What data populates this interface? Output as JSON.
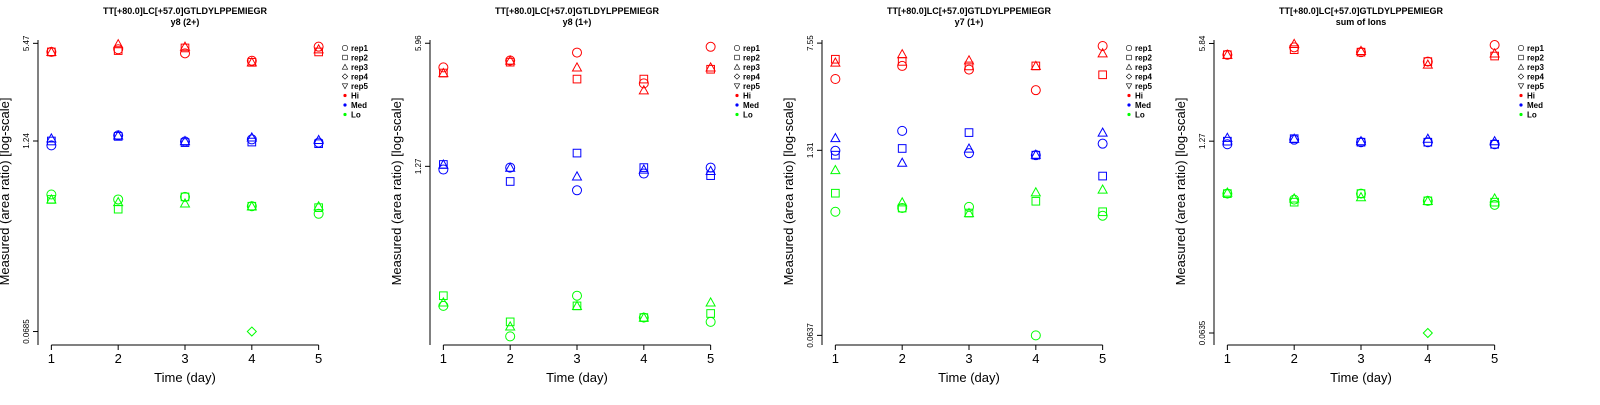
{
  "legend": {
    "entries": [
      "rep1",
      "rep2",
      "rep3",
      "rep4",
      "rep5",
      "Hi",
      "Med",
      "Lo"
    ]
  },
  "colors": {
    "Hi": "#ff0000",
    "Med": "#0000ff",
    "Lo": "#00ff00"
  },
  "chart_data": [
    {
      "type": "scatter",
      "title": "TT[+80.0]LC[+57.0]GTLDYLPPEMIEGR",
      "subtitle": "y8 (2+)",
      "xlabel": "Time (day)",
      "ylabel": "Measured (area ratio) [log-scale]",
      "xticks": [
        "1",
        "2",
        "3",
        "4",
        "5"
      ],
      "yticks": [
        "0.0685",
        "1.24",
        "5.47"
      ],
      "ylim_log10": [
        -1.24,
        0.76
      ],
      "log_scale": true,
      "series": [
        {
          "level": "Hi",
          "rep": "rep1",
          "x": [
            1,
            2,
            3,
            4,
            5
          ],
          "y": [
            4.8,
            5.0,
            4.7,
            4.2,
            5.2
          ]
        },
        {
          "level": "Hi",
          "rep": "rep2",
          "x": [
            1,
            2,
            3,
            4,
            5
          ],
          "y": [
            4.8,
            4.9,
            5.1,
            4.1,
            4.8
          ]
        },
        {
          "level": "Hi",
          "rep": "rep3",
          "x": [
            1,
            2,
            3,
            4,
            5
          ],
          "y": [
            4.8,
            5.4,
            5.2,
            4.1,
            5.0
          ]
        },
        {
          "level": "Med",
          "rep": "rep1",
          "x": [
            1,
            2,
            3,
            4,
            5
          ],
          "y": [
            1.16,
            1.35,
            1.23,
            1.27,
            1.21
          ]
        },
        {
          "level": "Med",
          "rep": "rep2",
          "x": [
            1,
            2,
            3,
            4,
            5
          ],
          "y": [
            1.24,
            1.33,
            1.21,
            1.22,
            1.19
          ]
        },
        {
          "level": "Med",
          "rep": "rep3",
          "x": [
            1,
            2,
            3,
            4,
            5
          ],
          "y": [
            1.29,
            1.35,
            1.24,
            1.31,
            1.26
          ]
        },
        {
          "level": "Lo",
          "rep": "rep1",
          "x": [
            1,
            2,
            3,
            4,
            5
          ],
          "y": [
            0.55,
            0.51,
            0.53,
            0.46,
            0.41
          ]
        },
        {
          "level": "Lo",
          "rep": "rep2",
          "x": [
            1,
            2,
            3,
            4,
            5
          ],
          "y": [
            0.51,
            0.44,
            0.53,
            0.46,
            0.45
          ]
        },
        {
          "level": "Lo",
          "rep": "rep3",
          "x": [
            1,
            2,
            3,
            4,
            5
          ],
          "y": [
            0.51,
            0.49,
            0.48,
            0.46,
            0.46
          ]
        },
        {
          "level": "Lo",
          "rep": "rep4",
          "x": [
            4
          ],
          "y": [
            0.0685
          ]
        }
      ]
    },
    {
      "type": "scatter",
      "title": "TT[+80.0]LC[+57.0]GTLDYLPPEMIEGR",
      "subtitle": "y8 (1+)",
      "xlabel": "Time (day)",
      "ylabel": "Measured (area ratio) [log-scale]",
      "xticks": [
        "1",
        "2",
        "3",
        "4",
        "5"
      ],
      "yticks": [
        "1.27",
        "5.96"
      ],
      "ylim_log10": [
        -0.86,
        0.793
      ],
      "log_scale": true,
      "series": [
        {
          "level": "Hi",
          "rep": "rep1",
          "x": [
            1,
            2,
            3,
            4,
            5
          ],
          "y": [
            4.4,
            4.8,
            5.3,
            3.6,
            5.7
          ]
        },
        {
          "level": "Hi",
          "rep": "rep2",
          "x": [
            1,
            2,
            3,
            4,
            5
          ],
          "y": [
            4.1,
            4.7,
            3.8,
            3.8,
            4.3
          ]
        },
        {
          "level": "Hi",
          "rep": "rep3",
          "x": [
            1,
            2,
            3,
            4,
            5
          ],
          "y": [
            4.1,
            4.8,
            4.4,
            3.3,
            4.4
          ]
        },
        {
          "level": "Med",
          "rep": "rep1",
          "x": [
            1,
            2,
            3,
            4,
            5
          ],
          "y": [
            1.22,
            1.25,
            0.94,
            1.16,
            1.25
          ]
        },
        {
          "level": "Med",
          "rep": "rep2",
          "x": [
            1,
            2,
            3,
            4,
            5
          ],
          "y": [
            1.3,
            1.05,
            1.5,
            1.25,
            1.13
          ]
        },
        {
          "level": "Med",
          "rep": "rep3",
          "x": [
            1,
            2,
            3,
            4,
            5
          ],
          "y": [
            1.3,
            1.25,
            1.12,
            1.22,
            1.2
          ]
        },
        {
          "level": "Lo",
          "rep": "rep1",
          "x": [
            1,
            2,
            3,
            4,
            5
          ],
          "y": [
            0.22,
            0.15,
            0.25,
            0.19,
            0.18
          ]
        },
        {
          "level": "Lo",
          "rep": "rep2",
          "x": [
            1,
            2,
            3,
            4,
            5
          ],
          "y": [
            0.25,
            0.18,
            0.22,
            0.19,
            0.2
          ]
        },
        {
          "level": "Lo",
          "rep": "rep3",
          "x": [
            1,
            2,
            3,
            4,
            5
          ],
          "y": [
            0.23,
            0.17,
            0.22,
            0.19,
            0.23
          ]
        }
      ]
    },
    {
      "type": "scatter",
      "title": "TT[+80.0]LC[+57.0]GTLDYLPPEMIEGR",
      "subtitle": "y7 (1+)",
      "xlabel": "Time (day)",
      "ylabel": "Measured (area ratio) [log-scale]",
      "xticks": [
        "1",
        "2",
        "3",
        "4",
        "5"
      ],
      "yticks": [
        "0.0637",
        "1.31",
        "7.55"
      ],
      "ylim_log10": [
        -1.25,
        0.9
      ],
      "log_scale": true,
      "series": [
        {
          "level": "Hi",
          "rep": "rep1",
          "x": [
            1,
            2,
            3,
            4,
            5
          ],
          "y": [
            4.2,
            5.2,
            4.9,
            3.5,
            7.2
          ]
        },
        {
          "level": "Hi",
          "rep": "rep2",
          "x": [
            1,
            2,
            3,
            4,
            5
          ],
          "y": [
            5.8,
            5.6,
            5.2,
            5.2,
            4.5
          ]
        },
        {
          "level": "Hi",
          "rep": "rep3",
          "x": [
            1,
            2,
            3,
            4,
            5
          ],
          "y": [
            5.5,
            6.3,
            5.7,
            5.2,
            6.4
          ]
        },
        {
          "level": "Med",
          "rep": "rep1",
          "x": [
            1,
            2,
            3,
            4,
            5
          ],
          "y": [
            1.3,
            1.8,
            1.25,
            1.21,
            1.46
          ]
        },
        {
          "level": "Med",
          "rep": "rep2",
          "x": [
            1,
            2,
            3,
            4,
            5
          ],
          "y": [
            1.21,
            1.35,
            1.75,
            1.21,
            0.86
          ]
        },
        {
          "level": "Med",
          "rep": "rep3",
          "x": [
            1,
            2,
            3,
            4,
            5
          ],
          "y": [
            1.6,
            1.07,
            1.35,
            1.22,
            1.75
          ]
        },
        {
          "level": "Lo",
          "rep": "rep1",
          "x": [
            1,
            2,
            3,
            4,
            5
          ],
          "y": [
            0.48,
            0.51,
            0.52,
            0.0637,
            0.45
          ]
        },
        {
          "level": "Lo",
          "rep": "rep2",
          "x": [
            1,
            2,
            3,
            4,
            5
          ],
          "y": [
            0.65,
            0.51,
            0.47,
            0.57,
            0.48
          ]
        },
        {
          "level": "Lo",
          "rep": "rep3",
          "x": [
            1,
            2,
            3,
            4,
            5
          ],
          "y": [
            0.95,
            0.56,
            0.47,
            0.66,
            0.69
          ]
        }
      ]
    },
    {
      "type": "scatter",
      "title": "TT[+80.0]LC[+57.0]GTLDYLPPEMIEGR",
      "subtitle": "sum of Ions",
      "xlabel": "Time (day)",
      "ylabel": "Measured (area ratio) [log-scale]",
      "xticks": [
        "1",
        "2",
        "3",
        "4",
        "5"
      ],
      "yticks": [
        "0.0635",
        "1.27",
        "5.84"
      ],
      "ylim_log10": [
        -1.265,
        0.79
      ],
      "log_scale": true,
      "series": [
        {
          "level": "Hi",
          "rep": "rep1",
          "x": [
            1,
            2,
            3,
            4,
            5
          ],
          "y": [
            4.9,
            5.5,
            5.1,
            4.4,
            5.7
          ]
        },
        {
          "level": "Hi",
          "rep": "rep2",
          "x": [
            1,
            2,
            3,
            4,
            5
          ],
          "y": [
            4.9,
            5.3,
            5.1,
            4.4,
            4.8
          ]
        },
        {
          "level": "Hi",
          "rep": "rep3",
          "x": [
            1,
            2,
            3,
            4,
            5
          ],
          "y": [
            4.9,
            5.8,
            5.2,
            4.2,
            5.0
          ]
        },
        {
          "level": "Med",
          "rep": "rep1",
          "x": [
            1,
            2,
            3,
            4,
            5
          ],
          "y": [
            1.21,
            1.3,
            1.25,
            1.25,
            1.21
          ]
        },
        {
          "level": "Med",
          "rep": "rep2",
          "x": [
            1,
            2,
            3,
            4,
            5
          ],
          "y": [
            1.27,
            1.32,
            1.25,
            1.25,
            1.21
          ]
        },
        {
          "level": "Med",
          "rep": "rep3",
          "x": [
            1,
            2,
            3,
            4,
            5
          ],
          "y": [
            1.34,
            1.32,
            1.27,
            1.32,
            1.27
          ]
        },
        {
          "level": "Lo",
          "rep": "rep1",
          "x": [
            1,
            2,
            3,
            4,
            5
          ],
          "y": [
            0.56,
            0.51,
            0.56,
            0.5,
            0.47
          ]
        },
        {
          "level": "Lo",
          "rep": "rep2",
          "x": [
            1,
            2,
            3,
            4,
            5
          ],
          "y": [
            0.56,
            0.49,
            0.56,
            0.5,
            0.49
          ]
        },
        {
          "level": "Lo",
          "rep": "rep3",
          "x": [
            1,
            2,
            3,
            4,
            5
          ],
          "y": [
            0.57,
            0.52,
            0.53,
            0.5,
            0.52
          ]
        },
        {
          "level": "Lo",
          "rep": "rep4",
          "x": [
            4
          ],
          "y": [
            0.0635
          ]
        }
      ]
    }
  ]
}
